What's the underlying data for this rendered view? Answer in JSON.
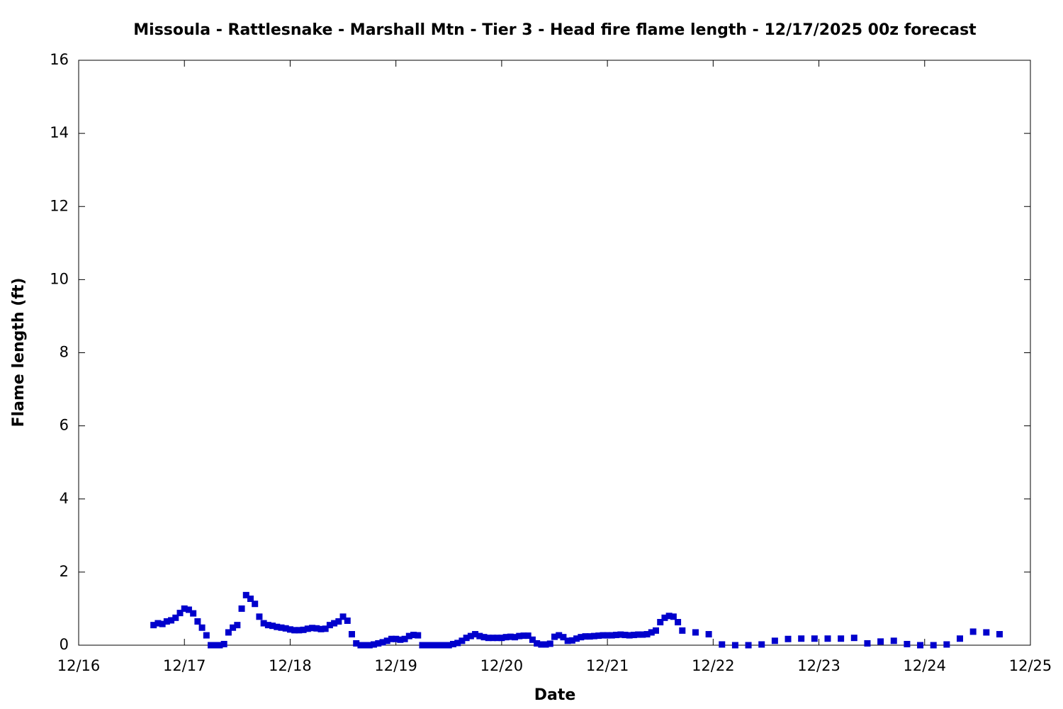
{
  "chart_data": {
    "type": "scatter",
    "title": "Missoula - Rattlesnake - Marshall Mtn - Tier 3 - Head fire flame length - 12/17/2025 00z forecast",
    "xlabel": "Date",
    "ylabel": "Flame length (ft)",
    "xlim": [
      0,
      216
    ],
    "ylim": [
      0,
      16
    ],
    "xticks": [
      {
        "value": 0,
        "label": "12/16"
      },
      {
        "value": 24,
        "label": "12/17"
      },
      {
        "value": 48,
        "label": "12/18"
      },
      {
        "value": 72,
        "label": "12/19"
      },
      {
        "value": 96,
        "label": "12/20"
      },
      {
        "value": 120,
        "label": "12/21"
      },
      {
        "value": 144,
        "label": "12/22"
      },
      {
        "value": 168,
        "label": "12/23"
      },
      {
        "value": 192,
        "label": "12/24"
      },
      {
        "value": 216,
        "label": "12/25"
      }
    ],
    "yticks": [
      0,
      2,
      4,
      6,
      8,
      10,
      12,
      14,
      16
    ],
    "color": "#0000cc",
    "x": [
      17,
      18,
      19,
      20,
      21,
      22,
      23,
      24,
      25,
      26,
      27,
      28,
      29,
      30,
      31,
      32,
      33,
      34,
      35,
      36,
      37,
      38,
      39,
      40,
      41,
      42,
      43,
      44,
      45,
      46,
      47,
      48,
      49,
      50,
      51,
      52,
      53,
      54,
      55,
      56,
      57,
      58,
      59,
      60,
      61,
      62,
      63,
      64,
      65,
      66,
      67,
      68,
      69,
      70,
      71,
      72,
      73,
      74,
      75,
      76,
      77,
      78,
      79,
      80,
      81,
      82,
      83,
      84,
      85,
      86,
      87,
      88,
      89,
      90,
      91,
      92,
      93,
      94,
      95,
      96,
      97,
      98,
      99,
      100,
      101,
      102,
      103,
      104,
      105,
      106,
      107,
      108,
      109,
      110,
      111,
      112,
      113,
      114,
      115,
      116,
      117,
      118,
      119,
      120,
      121,
      122,
      123,
      124,
      125,
      126,
      127,
      128,
      129,
      130,
      131,
      132,
      133,
      134,
      135,
      136,
      137,
      140,
      143,
      146,
      149,
      152,
      155,
      158,
      161,
      164,
      167,
      170,
      173,
      176,
      179,
      182,
      185,
      188,
      191,
      194,
      197,
      200,
      203,
      206,
      209
    ],
    "values": [
      0.55,
      0.6,
      0.58,
      0.65,
      0.68,
      0.75,
      0.88,
      1.0,
      0.97,
      0.87,
      0.65,
      0.48,
      0.27,
      0,
      0,
      0,
      0.03,
      0.35,
      0.48,
      0.55,
      1.0,
      1.37,
      1.27,
      1.13,
      0.78,
      0.6,
      0.55,
      0.53,
      0.5,
      0.48,
      0.46,
      0.43,
      0.41,
      0.41,
      0.42,
      0.45,
      0.47,
      0.46,
      0.44,
      0.45,
      0.55,
      0.6,
      0.65,
      0.78,
      0.67,
      0.3,
      0.05,
      0,
      0,
      0,
      0.02,
      0.05,
      0.08,
      0.12,
      0.17,
      0.17,
      0.15,
      0.17,
      0.25,
      0.28,
      0.27,
      0,
      0,
      0,
      0,
      0,
      0,
      0,
      0.03,
      0.06,
      0.12,
      0.2,
      0.25,
      0.3,
      0.25,
      0.22,
      0.2,
      0.2,
      0.2,
      0.2,
      0.22,
      0.23,
      0.22,
      0.25,
      0.26,
      0.26,
      0.15,
      0.05,
      0.02,
      0.02,
      0.04,
      0.23,
      0.27,
      0.22,
      0.12,
      0.13,
      0.18,
      0.22,
      0.24,
      0.24,
      0.25,
      0.26,
      0.27,
      0.27,
      0.27,
      0.28,
      0.29,
      0.28,
      0.27,
      0.28,
      0.29,
      0.29,
      0.3,
      0.35,
      0.4,
      0.63,
      0.75,
      0.8,
      0.78,
      0.63,
      0.4,
      0.35,
      0.3,
      0.02,
      0,
      0,
      0.02,
      0.12,
      0.17,
      0.18,
      0.18,
      0.18,
      0.18,
      0.2,
      0.05,
      0.1,
      0.12,
      0.03,
      0,
      0,
      0.02,
      0.18,
      0.37,
      0.35,
      0.3
    ]
  }
}
